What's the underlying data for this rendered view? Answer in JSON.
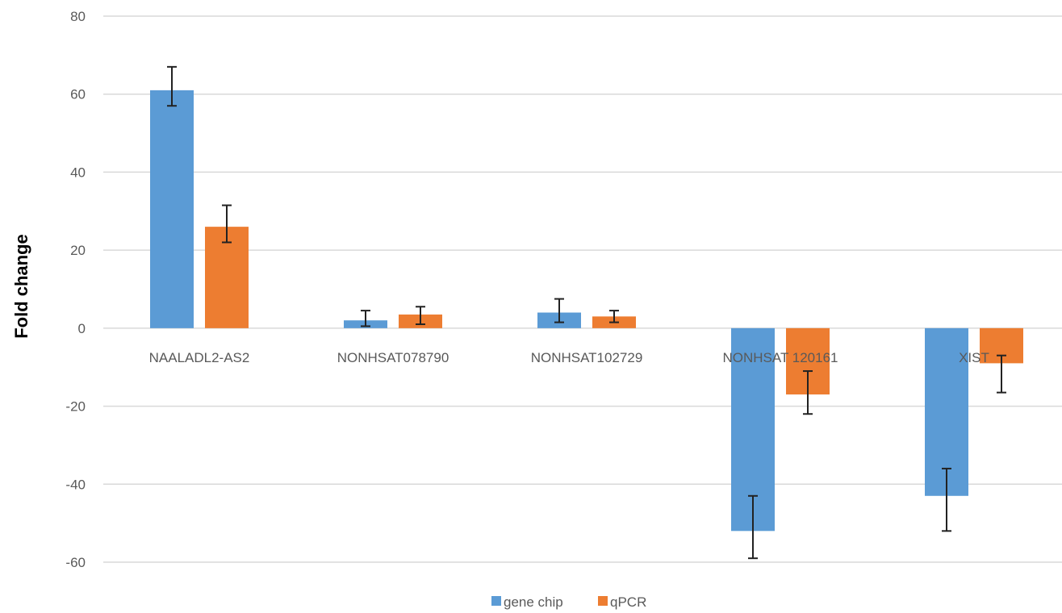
{
  "chart_data": {
    "type": "bar",
    "title": "",
    "xlabel": "",
    "ylabel": "Fold change",
    "ylim": [
      -60,
      80
    ],
    "yticks": [
      80,
      60,
      40,
      20,
      0,
      -20,
      -40,
      -60
    ],
    "grid": true,
    "legend_position": "bottom",
    "categories": [
      "NAALADL2-AS2",
      "NONHSAT078790",
      "NONHSAT102729",
      "NONHSAT 120161",
      "XIST"
    ],
    "series": [
      {
        "name": "gene chip",
        "color": "#5B9BD5",
        "values": [
          61,
          2,
          4,
          -52,
          -43
        ],
        "error_low": [
          57,
          0.5,
          1.5,
          -59,
          -52
        ],
        "error_high": [
          67,
          4.5,
          7.5,
          -43,
          -36
        ]
      },
      {
        "name": "qPCR",
        "color": "#ED7D31",
        "values": [
          26,
          3.5,
          3,
          -17,
          -9
        ],
        "error_low": [
          22,
          1,
          1.5,
          -22,
          -16.5
        ],
        "error_high": [
          31.5,
          5.5,
          4.5,
          -11,
          -7
        ]
      }
    ]
  }
}
